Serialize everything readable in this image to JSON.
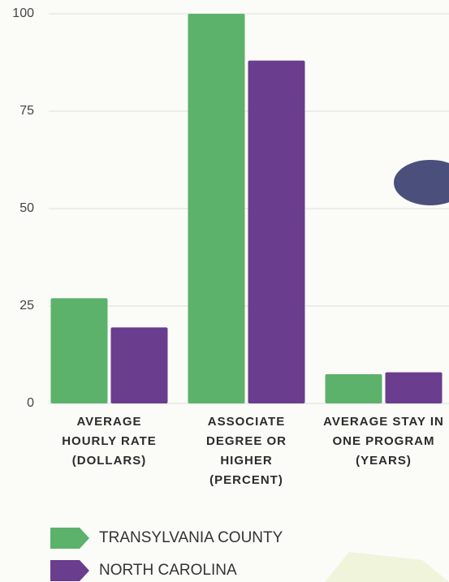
{
  "chart_data": {
    "type": "bar",
    "categories": [
      "AVERAGE HOURLY RATE (DOLLARS)",
      "ASSOCIATE DEGREE OR HIGHER (PERCENT)",
      "AVERAGE STAY IN ONE PROGRAM (YEARS)"
    ],
    "series": [
      {
        "name": "TRANSYLVANIA COUNTY",
        "color": "#5cb26a",
        "values": [
          27,
          100,
          7.5
        ]
      },
      {
        "name": "NORTH CAROLINA",
        "color": "#6a3d8f",
        "values": [
          19.5,
          88,
          8
        ]
      }
    ],
    "ylim": [
      0,
      100
    ],
    "yticks": [
      0,
      25,
      50,
      75,
      100
    ],
    "grid": true
  }
}
